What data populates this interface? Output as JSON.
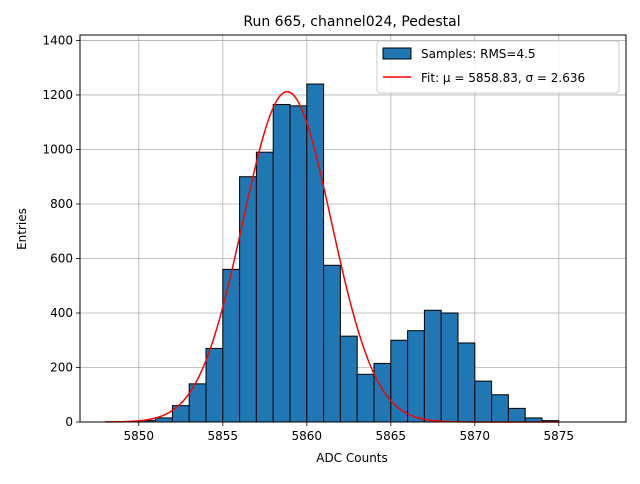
{
  "chart_data": {
    "type": "bar",
    "title": "Run 665, channel024, Pedestal",
    "xlabel": "ADC Counts",
    "ylabel": "Entries",
    "xlim": [
      5846.5,
      5879.0
    ],
    "ylim": [
      0,
      1420
    ],
    "xticks": [
      5850,
      5855,
      5860,
      5865,
      5870,
      5875
    ],
    "yticks": [
      0,
      200,
      400,
      600,
      800,
      1000,
      1200,
      1400
    ],
    "grid": true,
    "legend_position": "top-right",
    "bin_edges": [
      5850,
      5851,
      5852,
      5853,
      5854,
      5855,
      5856,
      5857,
      5858,
      5859,
      5860,
      5861,
      5862,
      5863,
      5864,
      5865,
      5866,
      5867,
      5868,
      5869,
      5870,
      5871,
      5872,
      5873,
      5874,
      5875
    ],
    "values": [
      5,
      15,
      60,
      140,
      270,
      560,
      900,
      990,
      1165,
      1160,
      1240,
      575,
      315,
      175,
      215,
      300,
      335,
      410,
      400,
      290,
      150,
      100,
      50,
      15,
      5
    ],
    "series": [
      {
        "name": "Samples: RMS=4.5",
        "type": "histogram",
        "color": "#1f77b4",
        "edgecolor": "#000000"
      },
      {
        "name": "Fit: μ = 5858.83, σ = 2.636",
        "type": "line",
        "color": "#ff0000",
        "mu": 5858.83,
        "sigma": 2.636,
        "amplitude": 1212,
        "x_range": [
          5848,
          5875
        ]
      }
    ]
  }
}
